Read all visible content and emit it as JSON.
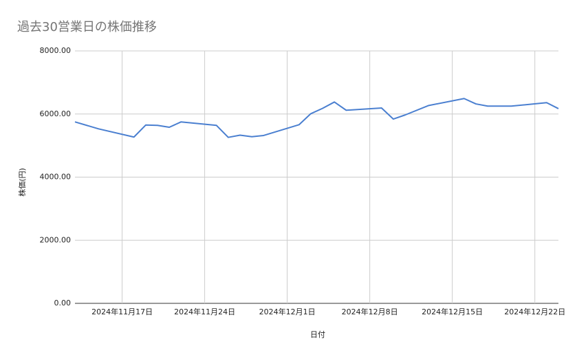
{
  "chart_data": {
    "type": "line",
    "title": "過去30営業日の株価推移",
    "x_label": "日付",
    "y_label": "株価(円)",
    "x": [
      "2024-11-13",
      "2024-11-15",
      "2024-11-18",
      "2024-11-19",
      "2024-11-20",
      "2024-11-21",
      "2024-11-22",
      "2024-11-25",
      "2024-11-26",
      "2024-11-27",
      "2024-11-28",
      "2024-11-29",
      "2024-12-02",
      "2024-12-03",
      "2024-12-04",
      "2024-12-05",
      "2024-12-06",
      "2024-12-09",
      "2024-12-10",
      "2024-12-11",
      "2024-12-13",
      "2024-12-16",
      "2024-12-17",
      "2024-12-18",
      "2024-12-20",
      "2024-12-23",
      "2024-12-24"
    ],
    "series": [
      {
        "name": "株価",
        "color": "#4a7fd0",
        "values": [
          5750,
          5530,
          5270,
          5650,
          5640,
          5580,
          5750,
          5640,
          5260,
          5330,
          5280,
          5320,
          5660,
          6010,
          6180,
          6380,
          6120,
          6190,
          5840,
          5970,
          6270,
          6490,
          6320,
          6250,
          6250,
          6360,
          6170
        ]
      }
    ],
    "xlim": [
      "2024-11-13",
      "2024-12-24"
    ],
    "xticks": [
      {
        "value": "2024-11-17",
        "label": "2024年11月17日"
      },
      {
        "value": "2024-11-24",
        "label": "2024年11月24日"
      },
      {
        "value": "2024-12-01",
        "label": "2024年12月1日"
      },
      {
        "value": "2024-12-08",
        "label": "2024年12月8日"
      },
      {
        "value": "2024-12-15",
        "label": "2024年12月15日"
      },
      {
        "value": "2024-12-22",
        "label": "2024年12月22日"
      }
    ],
    "ylim": [
      0,
      8000
    ],
    "yticks": [
      {
        "value": 0,
        "label": "0.00"
      },
      {
        "value": 2000,
        "label": "2000.00"
      },
      {
        "value": 4000,
        "label": "4000.00"
      },
      {
        "value": 6000,
        "label": "6000.00"
      },
      {
        "value": 8000,
        "label": "8000.00"
      }
    ],
    "grid": true
  }
}
